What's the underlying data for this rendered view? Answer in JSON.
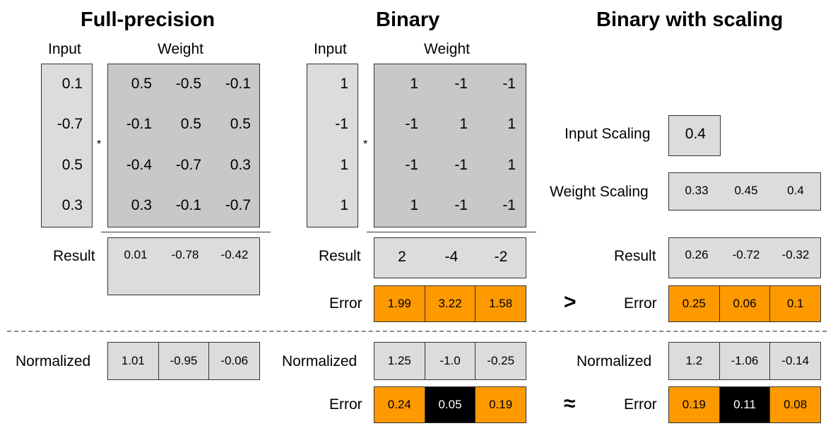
{
  "titles": {
    "full": "Full-precision",
    "binary": "Binary",
    "scaled": "Binary with scaling"
  },
  "labels": {
    "input": "Input",
    "weight": "Weight",
    "result": "Result",
    "error": "Error",
    "normalized": "Normalized",
    "input_scaling": "Input Scaling",
    "weight_scaling": "Weight Scaling",
    "multiply": "*",
    "greater": ">",
    "approx": "≈"
  },
  "full": {
    "input": [
      "0.1",
      "-0.7",
      "0.5",
      "0.3"
    ],
    "weight": [
      [
        "0.5",
        "-0.5",
        "-0.1"
      ],
      [
        "-0.1",
        "0.5",
        "0.5"
      ],
      [
        "-0.4",
        "-0.7",
        "0.3"
      ],
      [
        "0.3",
        "-0.1",
        "-0.7"
      ]
    ],
    "result": [
      "0.01",
      "-0.78",
      "-0.42"
    ],
    "normalized": [
      "1.01",
      "-0.95",
      "-0.06"
    ]
  },
  "binary": {
    "input": [
      "1",
      "-1",
      "1",
      "1"
    ],
    "weight": [
      [
        "1",
        "-1",
        "-1"
      ],
      [
        "-1",
        "1",
        "1"
      ],
      [
        "-1",
        "-1",
        "1"
      ],
      [
        "1",
        "-1",
        "-1"
      ]
    ],
    "result": [
      "2",
      "-4",
      "-2"
    ],
    "error": [
      "1.99",
      "3.22",
      "1.58"
    ],
    "normalized": [
      "1.25",
      "-1.0",
      "-0.25"
    ],
    "norm_error": [
      "0.24",
      "0.05",
      "0.19"
    ]
  },
  "scaled": {
    "input_scaling": "0.4",
    "weight_scaling": [
      "0.33",
      "0.45",
      "0.4"
    ],
    "result": [
      "0.26",
      "-0.72",
      "-0.32"
    ],
    "error": [
      "0.25",
      "0.06",
      "0.1"
    ],
    "normalized": [
      "1.2",
      "-1.06",
      "-0.14"
    ],
    "norm_error": [
      "0.19",
      "0.11",
      "0.08"
    ]
  },
  "colors": {
    "error_cell": "#ff9900",
    "highlight_cell": "#000000",
    "matrix_light": "#dcdcdc",
    "matrix_dark": "#c8c8c8"
  }
}
